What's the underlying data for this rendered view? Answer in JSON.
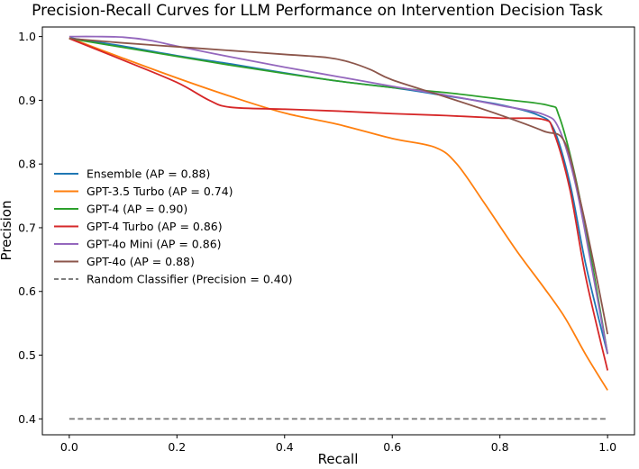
{
  "chart_data": {
    "type": "line",
    "title": "Precision-Recall Curves for LLM Performance on Intervention Decision Task",
    "xlabel": "Recall",
    "ylabel": "Precision",
    "xlim": [
      -0.05,
      1.05
    ],
    "ylim": [
      0.375,
      1.015
    ],
    "xticks": [
      "0.0",
      "0.2",
      "0.4",
      "0.6",
      "0.8",
      "1.0"
    ],
    "yticks": [
      "0.4",
      "0.5",
      "0.6",
      "0.7",
      "0.8",
      "0.9",
      "1.0"
    ],
    "grid": false,
    "legend_position": "center-left",
    "series": [
      {
        "name": "Ensemble (AP = 0.88)",
        "color": "#1f77b4",
        "x": [
          0,
          0.1,
          0.2,
          0.3,
          0.4,
          0.5,
          0.6,
          0.7,
          0.8,
          0.87,
          0.9,
          0.93,
          0.96,
          1.0
        ],
        "y": [
          0.998,
          0.985,
          0.97,
          0.957,
          0.943,
          0.93,
          0.92,
          0.907,
          0.893,
          0.877,
          0.855,
          0.77,
          0.64,
          0.502
        ]
      },
      {
        "name": "GPT-3.5 Turbo (AP = 0.74)",
        "color": "#ff7f0e",
        "x": [
          0,
          0.1,
          0.2,
          0.3,
          0.4,
          0.5,
          0.6,
          0.68,
          0.72,
          0.77,
          0.83,
          0.88,
          0.92,
          0.96,
          1.0
        ],
        "y": [
          0.998,
          0.966,
          0.935,
          0.906,
          0.88,
          0.862,
          0.84,
          0.826,
          0.8,
          0.74,
          0.665,
          0.608,
          0.56,
          0.5,
          0.445
        ]
      },
      {
        "name": "GPT-4 (AP = 0.90)",
        "color": "#2ca02c",
        "x": [
          0,
          0.1,
          0.2,
          0.3,
          0.4,
          0.5,
          0.6,
          0.7,
          0.8,
          0.89,
          0.91,
          0.94,
          0.97,
          1.0
        ],
        "y": [
          0.997,
          0.983,
          0.969,
          0.955,
          0.942,
          0.93,
          0.92,
          0.912,
          0.902,
          0.892,
          0.875,
          0.78,
          0.65,
          0.502
        ]
      },
      {
        "name": "GPT-4 Turbo (AP = 0.86)",
        "color": "#d62728",
        "x": [
          0,
          0.1,
          0.2,
          0.26,
          0.3,
          0.4,
          0.5,
          0.6,
          0.7,
          0.8,
          0.88,
          0.9,
          0.93,
          0.96,
          1.0
        ],
        "y": [
          0.997,
          0.963,
          0.928,
          0.9,
          0.889,
          0.886,
          0.883,
          0.879,
          0.876,
          0.872,
          0.87,
          0.85,
          0.76,
          0.62,
          0.476
        ]
      },
      {
        "name": "GPT-4o Mini (AP = 0.86)",
        "color": "#9467bd",
        "x": [
          0,
          0.05,
          0.1,
          0.15,
          0.2,
          0.3,
          0.4,
          0.5,
          0.6,
          0.7,
          0.8,
          0.88,
          0.91,
          0.94,
          0.97,
          1.0
        ],
        "y": [
          1.0,
          1.0,
          0.999,
          0.994,
          0.985,
          0.968,
          0.952,
          0.937,
          0.922,
          0.908,
          0.892,
          0.878,
          0.855,
          0.77,
          0.64,
          0.502
        ]
      },
      {
        "name": "GPT-4o (AP = 0.88)",
        "color": "#8c564b",
        "x": [
          0,
          0.1,
          0.2,
          0.3,
          0.4,
          0.48,
          0.52,
          0.56,
          0.6,
          0.7,
          0.8,
          0.88,
          0.92,
          0.95,
          0.98,
          1.0
        ],
        "y": [
          0.997,
          0.99,
          0.984,
          0.978,
          0.972,
          0.967,
          0.96,
          0.948,
          0.932,
          0.905,
          0.877,
          0.852,
          0.835,
          0.74,
          0.62,
          0.533
        ]
      },
      {
        "name": "Random Classifier (Precision = 0.40)",
        "color": "#7f7f7f",
        "dashed": true,
        "x": [
          0,
          1
        ],
        "y": [
          0.4,
          0.4
        ]
      }
    ]
  }
}
